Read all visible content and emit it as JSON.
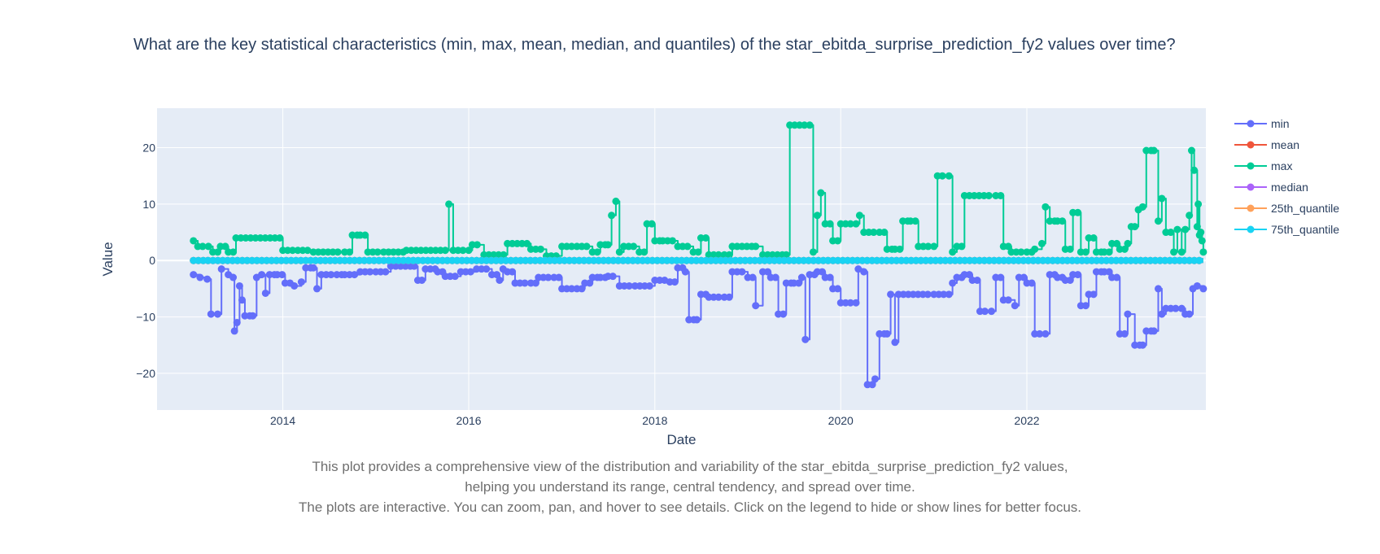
{
  "caption": {
    "line1": "This plot provides a comprehensive view of the distribution and variability of the star_ebitda_surprise_prediction_fy2 values,",
    "line2": "helping you understand its range, central tendency, and spread over time.",
    "line3": "The plots are interactive. You can zoom, pan, and hover to see details. Click on the legend to hide or show lines for better focus."
  },
  "chart_data": {
    "type": "line",
    "title": "What are the key statistical characteristics (min, max, mean, median, and quantiles) of the star_ebitda_surprise_prediction_fy2 values over time?",
    "xlabel": "Date",
    "ylabel": "Value",
    "xlim": [
      "2012-08-25",
      "2023-12-05"
    ],
    "ylim": [
      -26.5,
      27
    ],
    "x_ticks": [
      {
        "value": "2014-01-01",
        "label": "2014"
      },
      {
        "value": "2016-01-01",
        "label": "2016"
      },
      {
        "value": "2018-01-01",
        "label": "2018"
      },
      {
        "value": "2020-01-01",
        "label": "2020"
      },
      {
        "value": "2022-01-01",
        "label": "2022"
      }
    ],
    "y_ticks": [
      {
        "value": -20,
        "label": "−20"
      },
      {
        "value": -10,
        "label": "−10"
      },
      {
        "value": 0,
        "label": "0"
      },
      {
        "value": 10,
        "label": "10"
      },
      {
        "value": 20,
        "label": "20"
      }
    ],
    "grid": true,
    "legend_position": "top-right",
    "colors": {
      "plot_bg": "#e5ecf6",
      "grid": "#ffffff",
      "text": "#2a3f5f"
    },
    "series": [
      {
        "name": "min",
        "color": "#636efa",
        "points": [
          [
            "2013-01-15",
            -2.5
          ],
          [
            "2013-02-10",
            -3
          ],
          [
            "2013-03-10",
            -3.3
          ],
          [
            "2013-03-25",
            -9.5
          ],
          [
            "2013-04-20",
            -9.5
          ],
          [
            "2013-05-05",
            -1.5
          ],
          [
            "2013-06-01",
            -2.5
          ],
          [
            "2013-06-20",
            -3
          ],
          [
            "2013-06-25",
            -12.5
          ],
          [
            "2013-07-05",
            -11
          ],
          [
            "2013-07-15",
            -4.5
          ],
          [
            "2013-07-25",
            -7
          ],
          [
            "2013-08-05",
            -9.8
          ],
          [
            "2013-09-05",
            -9.8
          ],
          [
            "2013-09-20",
            -3
          ],
          [
            "2013-10-10",
            -2.5
          ],
          [
            "2013-10-25",
            -5.8
          ],
          [
            "2013-11-10",
            -2.5
          ],
          [
            "2013-12-10",
            -2.5
          ],
          [
            "2014-01-10",
            -4
          ],
          [
            "2014-02-15",
            -4.5
          ],
          [
            "2014-03-15",
            -3.8
          ],
          [
            "2014-04-01",
            -1.3
          ],
          [
            "2014-05-01",
            -1.3
          ],
          [
            "2014-05-15",
            -5
          ],
          [
            "2014-06-01",
            -2.5
          ],
          [
            "2014-08-01",
            -2.5
          ],
          [
            "2014-09-01",
            -2.5
          ],
          [
            "2014-11-01",
            -2
          ],
          [
            "2015-01-01",
            -2
          ],
          [
            "2015-03-01",
            -1
          ],
          [
            "2015-06-01",
            -1
          ],
          [
            "2015-06-15",
            -3.5
          ],
          [
            "2015-07-01",
            -3.5
          ],
          [
            "2015-07-15",
            -1.5
          ],
          [
            "2015-09-01",
            -2
          ],
          [
            "2015-10-01",
            -2.8
          ],
          [
            "2015-12-01",
            -2
          ],
          [
            "2016-02-01",
            -1.5
          ],
          [
            "2016-04-01",
            -2.5
          ],
          [
            "2016-05-01",
            -3.5
          ],
          [
            "2016-05-15",
            -1.5
          ],
          [
            "2016-06-01",
            -2
          ],
          [
            "2016-07-01",
            -4
          ],
          [
            "2016-09-01",
            -4
          ],
          [
            "2016-10-01",
            -3
          ],
          [
            "2016-12-01",
            -3
          ],
          [
            "2017-01-01",
            -5
          ],
          [
            "2017-03-01",
            -5
          ],
          [
            "2017-04-01",
            -4
          ],
          [
            "2017-05-01",
            -3
          ],
          [
            "2017-06-01",
            -3
          ],
          [
            "2017-07-01",
            -2.8
          ],
          [
            "2017-08-15",
            -4.5
          ],
          [
            "2017-10-15",
            -4.5
          ],
          [
            "2018-01-01",
            -3.5
          ],
          [
            "2018-03-01",
            -3.8
          ],
          [
            "2018-04-01",
            -1.3
          ],
          [
            "2018-05-01",
            -2
          ],
          [
            "2018-05-15",
            -10.5
          ],
          [
            "2018-06-15",
            -10.5
          ],
          [
            "2018-07-01",
            -6
          ],
          [
            "2018-08-01",
            -6.5
          ],
          [
            "2018-10-01",
            -6.5
          ],
          [
            "2018-11-01",
            -2
          ],
          [
            "2019-01-01",
            -3
          ],
          [
            "2019-02-01",
            -8
          ],
          [
            "2019-03-01",
            -2
          ],
          [
            "2019-04-01",
            -3
          ],
          [
            "2019-05-01",
            -9.5
          ],
          [
            "2019-06-01",
            -4
          ],
          [
            "2019-07-01",
            -4
          ],
          [
            "2019-08-01",
            -3
          ],
          [
            "2019-08-15",
            -14
          ],
          [
            "2019-09-01",
            -2.5
          ],
          [
            "2019-10-01",
            -2
          ],
          [
            "2019-11-01",
            -3
          ],
          [
            "2019-12-01",
            -5
          ],
          [
            "2020-01-01",
            -7.5
          ],
          [
            "2020-03-01",
            -7.5
          ],
          [
            "2020-03-10",
            -1.5
          ],
          [
            "2020-04-01",
            -2
          ],
          [
            "2020-04-15",
            -22
          ],
          [
            "2020-05-15",
            -21
          ],
          [
            "2020-06-01",
            -13
          ],
          [
            "2020-07-01",
            -13
          ],
          [
            "2020-07-15",
            -6
          ],
          [
            "2020-08-01",
            -14.5
          ],
          [
            "2020-08-15",
            -6
          ],
          [
            "2021-01-01",
            -6
          ],
          [
            "2021-03-01",
            -6
          ],
          [
            "2021-03-15",
            -4
          ],
          [
            "2021-04-01",
            -3
          ],
          [
            "2021-05-01",
            -2.5
          ],
          [
            "2021-06-01",
            -3.5
          ],
          [
            "2021-07-01",
            -9
          ],
          [
            "2021-08-15",
            -9
          ],
          [
            "2021-09-01",
            -3
          ],
          [
            "2021-10-01",
            -7
          ],
          [
            "2021-11-15",
            -8
          ],
          [
            "2021-12-01",
            -3
          ],
          [
            "2022-01-01",
            -4
          ],
          [
            "2022-02-01",
            -13
          ],
          [
            "2022-03-15",
            -13
          ],
          [
            "2022-04-01",
            -2.5
          ],
          [
            "2022-05-01",
            -3
          ],
          [
            "2022-06-01",
            -3.5
          ],
          [
            "2022-07-01",
            -2.5
          ],
          [
            "2022-08-01",
            -8
          ],
          [
            "2022-09-01",
            -6
          ],
          [
            "2022-10-01",
            -2
          ],
          [
            "2022-11-01",
            -2
          ],
          [
            "2022-12-01",
            -3
          ],
          [
            "2023-01-01",
            -13
          ],
          [
            "2023-02-01",
            -9.5
          ],
          [
            "2023-03-01",
            -15
          ],
          [
            "2023-04-01",
            -15
          ],
          [
            "2023-04-15",
            -12.5
          ],
          [
            "2023-05-15",
            -12.5
          ],
          [
            "2023-06-01",
            -5
          ],
          [
            "2023-06-15",
            -9.5
          ],
          [
            "2023-07-01",
            -8.5
          ],
          [
            "2023-09-01",
            -8.5
          ],
          [
            "2023-09-15",
            -9.5
          ],
          [
            "2023-10-01",
            -9.5
          ],
          [
            "2023-10-15",
            -5
          ],
          [
            "2023-11-01",
            -4.5
          ],
          [
            "2023-11-25",
            -5
          ]
        ]
      },
      {
        "name": "mean",
        "color": "#ef553b",
        "points": [
          [
            "2013-01-15",
            0
          ],
          [
            "2023-11-25",
            0
          ]
        ]
      },
      {
        "name": "max",
        "color": "#00cc96",
        "points": [
          [
            "2013-01-15",
            3.5
          ],
          [
            "2013-02-01",
            2.5
          ],
          [
            "2013-03-15",
            2.5
          ],
          [
            "2013-04-01",
            1.5
          ],
          [
            "2013-05-01",
            2.5
          ],
          [
            "2013-06-01",
            1.5
          ],
          [
            "2013-07-01",
            4
          ],
          [
            "2013-12-01",
            4
          ],
          [
            "2014-01-01",
            1.8
          ],
          [
            "2014-03-01",
            1.8
          ],
          [
            "2014-05-01",
            1.5
          ],
          [
            "2014-09-01",
            1.5
          ],
          [
            "2014-10-01",
            4.5
          ],
          [
            "2014-11-01",
            4.5
          ],
          [
            "2014-12-01",
            1.5
          ],
          [
            "2015-02-01",
            1.5
          ],
          [
            "2015-05-01",
            1.8
          ],
          [
            "2015-10-01",
            1.8
          ],
          [
            "2015-10-15",
            10
          ],
          [
            "2015-11-01",
            1.8
          ],
          [
            "2016-01-01",
            1.8
          ],
          [
            "2016-01-15",
            2.8
          ],
          [
            "2016-03-01",
            1
          ],
          [
            "2016-06-01",
            3
          ],
          [
            "2016-09-01",
            2
          ],
          [
            "2016-11-01",
            0.8
          ],
          [
            "2017-01-01",
            2.5
          ],
          [
            "2017-03-01",
            2.5
          ],
          [
            "2017-05-01",
            1.5
          ],
          [
            "2017-06-01",
            2.8
          ],
          [
            "2017-07-01",
            2.8
          ],
          [
            "2017-07-15",
            8
          ],
          [
            "2017-08-01",
            10.5
          ],
          [
            "2017-08-15",
            1.5
          ],
          [
            "2017-09-01",
            2.5
          ],
          [
            "2017-11-01",
            1.5
          ],
          [
            "2017-12-01",
            6.5
          ],
          [
            "2018-01-01",
            3.5
          ],
          [
            "2018-02-01",
            3.5
          ],
          [
            "2018-04-01",
            2.5
          ],
          [
            "2018-06-01",
            1.5
          ],
          [
            "2018-07-01",
            4
          ],
          [
            "2018-08-01",
            1
          ],
          [
            "2018-10-01",
            1
          ],
          [
            "2018-11-01",
            2.5
          ],
          [
            "2019-02-01",
            2.5
          ],
          [
            "2019-03-01",
            1
          ],
          [
            "2019-06-01",
            1
          ],
          [
            "2019-06-15",
            24
          ],
          [
            "2019-09-01",
            24
          ],
          [
            "2019-09-15",
            1.5
          ],
          [
            "2019-10-01",
            8
          ],
          [
            "2019-10-15",
            12
          ],
          [
            "2019-11-01",
            6.5
          ],
          [
            "2019-12-01",
            3.5
          ],
          [
            "2020-01-01",
            6.5
          ],
          [
            "2020-03-01",
            6.5
          ],
          [
            "2020-03-15",
            8
          ],
          [
            "2020-04-01",
            5
          ],
          [
            "2020-06-01",
            5
          ],
          [
            "2020-07-01",
            2
          ],
          [
            "2020-08-01",
            2
          ],
          [
            "2020-09-01",
            7
          ],
          [
            "2020-10-01",
            7
          ],
          [
            "2020-11-01",
            2.5
          ],
          [
            "2021-01-01",
            2.5
          ],
          [
            "2021-01-15",
            15
          ],
          [
            "2021-03-01",
            15
          ],
          [
            "2021-03-15",
            1.5
          ],
          [
            "2021-04-01",
            2.5
          ],
          [
            "2021-05-01",
            11.5
          ],
          [
            "2021-09-01",
            11.5
          ],
          [
            "2021-10-01",
            2.5
          ],
          [
            "2021-11-01",
            1.5
          ],
          [
            "2022-01-01",
            1.5
          ],
          [
            "2022-02-01",
            2
          ],
          [
            "2022-03-01",
            3
          ],
          [
            "2022-03-15",
            9.5
          ],
          [
            "2022-04-01",
            7
          ],
          [
            "2022-05-01",
            7
          ],
          [
            "2022-06-01",
            2
          ],
          [
            "2022-07-01",
            8.5
          ],
          [
            "2022-08-01",
            1.5
          ],
          [
            "2022-09-01",
            4
          ],
          [
            "2022-10-01",
            1.5
          ],
          [
            "2022-11-01",
            1.5
          ],
          [
            "2022-12-01",
            3
          ],
          [
            "2023-01-01",
            2
          ],
          [
            "2023-02-01",
            3
          ],
          [
            "2023-02-15",
            6
          ],
          [
            "2023-03-01",
            6
          ],
          [
            "2023-03-15",
            9
          ],
          [
            "2023-04-01",
            9.5
          ],
          [
            "2023-04-15",
            19.5
          ],
          [
            "2023-05-15",
            19.5
          ],
          [
            "2023-06-01",
            7
          ],
          [
            "2023-06-15",
            11
          ],
          [
            "2023-07-01",
            5
          ],
          [
            "2023-08-01",
            1.5
          ],
          [
            "2023-08-15",
            5.5
          ],
          [
            "2023-09-01",
            1.5
          ],
          [
            "2023-09-15",
            5.5
          ],
          [
            "2023-10-01",
            8
          ],
          [
            "2023-10-10",
            19.5
          ],
          [
            "2023-10-20",
            16
          ],
          [
            "2023-11-01",
            6
          ],
          [
            "2023-11-05",
            10
          ],
          [
            "2023-11-10",
            4.5
          ],
          [
            "2023-11-15",
            5
          ],
          [
            "2023-11-20",
            3.5
          ],
          [
            "2023-11-25",
            1.5
          ]
        ]
      },
      {
        "name": "median",
        "color": "#ab63fa",
        "points": [
          [
            "2013-01-15",
            0
          ],
          [
            "2023-11-25",
            0
          ]
        ]
      },
      {
        "name": "25th_quantile",
        "color": "#ffa15a",
        "points": [
          [
            "2013-01-15",
            0
          ],
          [
            "2023-11-25",
            0
          ]
        ]
      },
      {
        "name": "75th_quantile",
        "color": "#19d3f3",
        "points": [
          [
            "2013-01-15",
            0
          ],
          [
            "2023-11-25",
            0
          ]
        ]
      }
    ]
  }
}
